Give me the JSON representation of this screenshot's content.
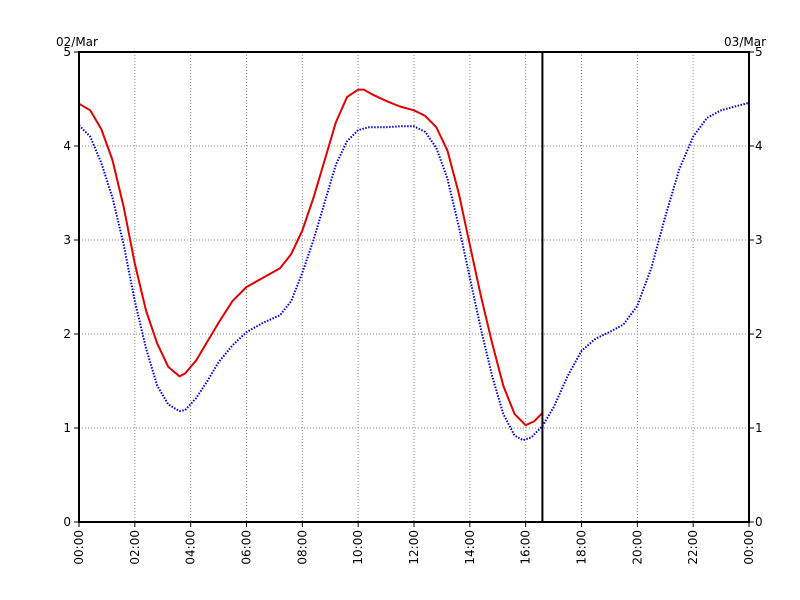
{
  "chart_data": {
    "type": "line",
    "title": "",
    "xlabel": "",
    "ylabel": "",
    "date_left": "02/Mar",
    "date_right": "03/Mar",
    "xlim": [
      0,
      24
    ],
    "ylim": [
      0,
      5
    ],
    "grid": true,
    "grid_style": "dotted",
    "x_ticks": [
      {
        "value": 0,
        "label": "00:00"
      },
      {
        "value": 2,
        "label": "02:00"
      },
      {
        "value": 4,
        "label": "04:00"
      },
      {
        "value": 6,
        "label": "06:00"
      },
      {
        "value": 8,
        "label": "08:00"
      },
      {
        "value": 10,
        "label": "10:00"
      },
      {
        "value": 12,
        "label": "12:00"
      },
      {
        "value": 14,
        "label": "14:00"
      },
      {
        "value": 16,
        "label": "16:00"
      },
      {
        "value": 18,
        "label": "18:00"
      },
      {
        "value": 20,
        "label": "20:00"
      },
      {
        "value": 22,
        "label": "22:00"
      },
      {
        "value": 24,
        "label": "00:00"
      }
    ],
    "y_ticks": [
      {
        "value": 0,
        "label": "0"
      },
      {
        "value": 1,
        "label": "1"
      },
      {
        "value": 2,
        "label": "2"
      },
      {
        "value": 3,
        "label": "3"
      },
      {
        "value": 4,
        "label": "4"
      },
      {
        "value": 5,
        "label": "5"
      }
    ],
    "current_time_marker": 16.6,
    "series": [
      {
        "color": "#dd0000",
        "style": "solid",
        "x": [
          0,
          0.4,
          0.8,
          1.2,
          1.6,
          2.0,
          2.4,
          2.8,
          3.2,
          3.6,
          3.8,
          4.2,
          4.6,
          5.0,
          5.5,
          6.0,
          6.6,
          7.2,
          7.6,
          8.0,
          8.4,
          8.8,
          9.2,
          9.6,
          10.0,
          10.2,
          10.5,
          11.0,
          11.5,
          12.0,
          12.4,
          12.8,
          13.2,
          13.6,
          14.0,
          14.4,
          14.8,
          15.2,
          15.6,
          16.0,
          16.3,
          16.6
        ],
        "values": [
          4.45,
          4.38,
          4.18,
          3.85,
          3.35,
          2.75,
          2.25,
          1.9,
          1.65,
          1.55,
          1.58,
          1.72,
          1.92,
          2.12,
          2.35,
          2.5,
          2.6,
          2.7,
          2.85,
          3.1,
          3.45,
          3.85,
          4.25,
          4.52,
          4.6,
          4.6,
          4.55,
          4.48,
          4.42,
          4.38,
          4.32,
          4.2,
          3.95,
          3.5,
          2.95,
          2.4,
          1.9,
          1.45,
          1.15,
          1.03,
          1.07,
          1.16
        ]
      },
      {
        "color": "#0000cc",
        "style": "dotted",
        "x": [
          0,
          0.4,
          0.8,
          1.2,
          1.6,
          2.0,
          2.4,
          2.8,
          3.2,
          3.6,
          3.8,
          4.2,
          4.6,
          5.0,
          5.5,
          6.0,
          6.6,
          7.2,
          7.6,
          8.0,
          8.4,
          8.8,
          9.2,
          9.6,
          10.0,
          10.4,
          11.0,
          11.5,
          12.0,
          12.4,
          12.8,
          13.2,
          13.6,
          14.0,
          14.4,
          14.8,
          15.2,
          15.6,
          15.9,
          16.2,
          16.6,
          17.0,
          17.5,
          18.0,
          18.5,
          19.0,
          19.5,
          20.0,
          20.5,
          21.0,
          21.5,
          22.0,
          22.5,
          23.0,
          23.5,
          24.0
        ],
        "values": [
          4.22,
          4.1,
          3.82,
          3.45,
          2.95,
          2.35,
          1.85,
          1.45,
          1.25,
          1.18,
          1.19,
          1.32,
          1.5,
          1.7,
          1.88,
          2.02,
          2.12,
          2.2,
          2.35,
          2.65,
          3.0,
          3.4,
          3.8,
          4.05,
          4.17,
          4.2,
          4.2,
          4.21,
          4.21,
          4.15,
          3.98,
          3.65,
          3.15,
          2.6,
          2.05,
          1.55,
          1.15,
          0.92,
          0.87,
          0.9,
          1.02,
          1.22,
          1.55,
          1.82,
          1.95,
          2.02,
          2.1,
          2.3,
          2.7,
          3.25,
          3.75,
          4.1,
          4.3,
          4.38,
          4.42,
          4.46
        ]
      }
    ]
  }
}
